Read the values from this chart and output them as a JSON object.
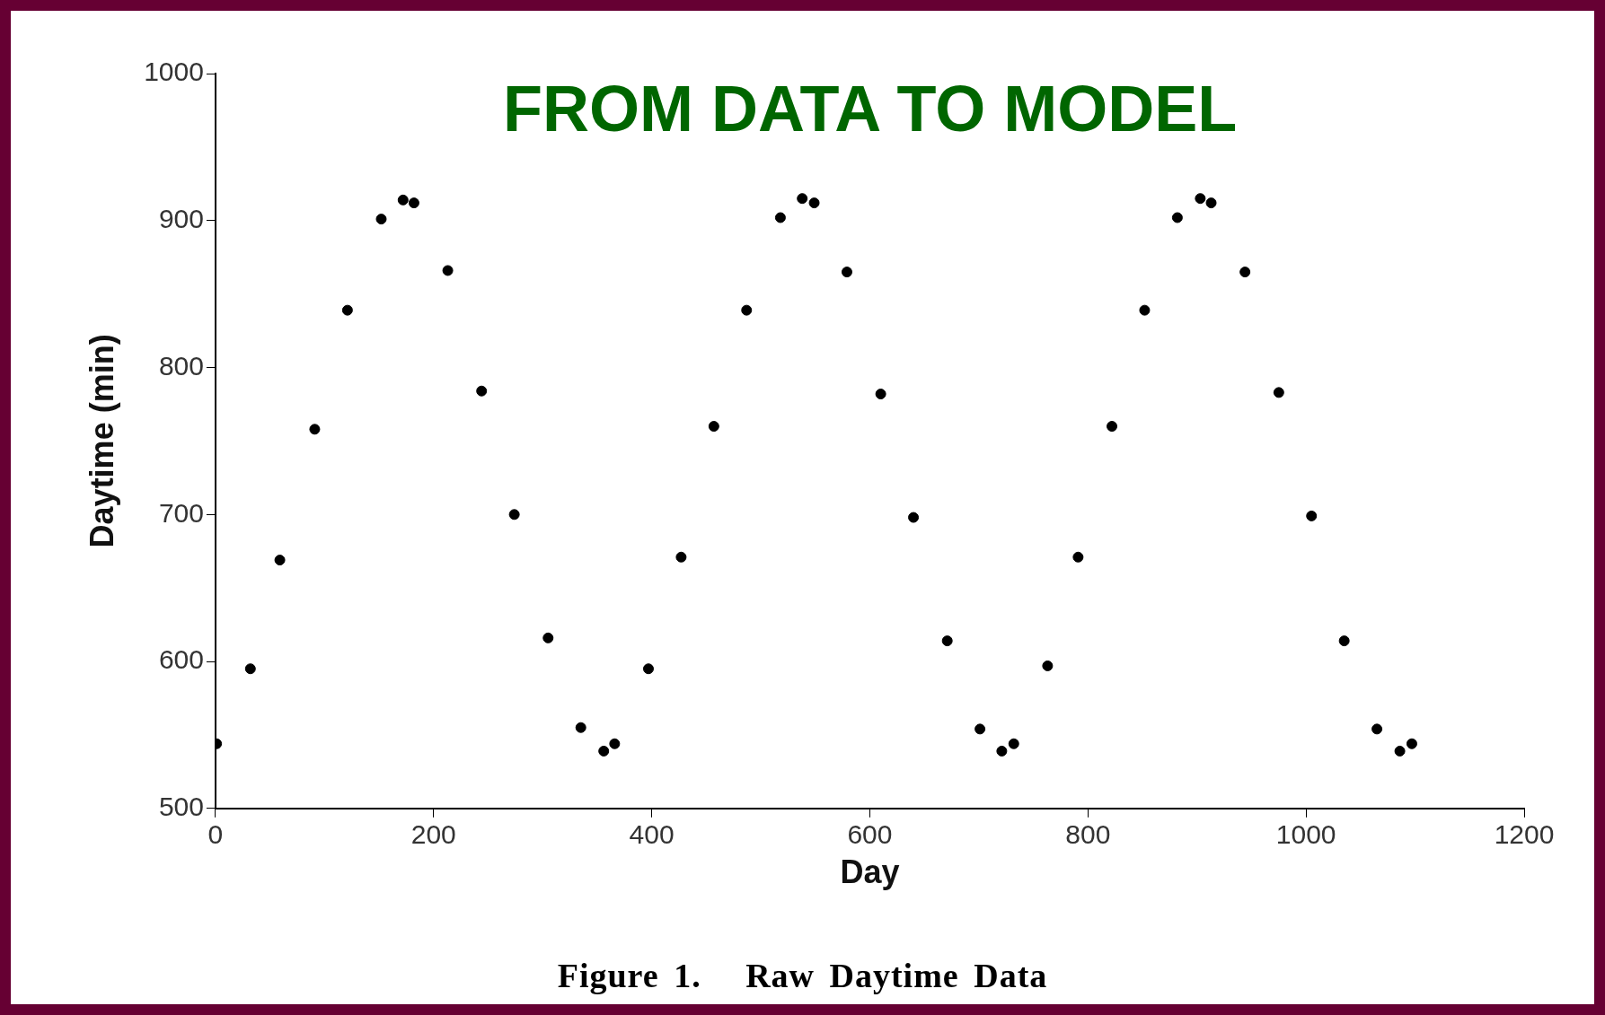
{
  "chart_data": {
    "type": "scatter",
    "title": "FROM DATA TO MODEL",
    "xlabel": "Day",
    "ylabel": "Daytime (min)",
    "annotations": [
      "Figure 1.   Raw Daytime Data"
    ],
    "x": [
      1,
      32,
      59,
      91,
      121,
      152,
      172,
      182,
      213,
      244,
      274,
      305,
      335,
      356,
      366,
      397,
      427,
      457,
      487,
      518,
      538,
      549,
      579,
      610,
      640,
      671,
      701,
      721,
      732,
      763,
      791,
      822,
      852,
      882,
      903,
      913,
      944,
      975,
      1005,
      1035,
      1065,
      1086,
      1097
    ],
    "series": [
      {
        "color": "#000000",
        "values": [
          544,
          595,
          669,
          758,
          839,
          901,
          914,
          912,
          866,
          784,
          700,
          616,
          555,
          539,
          544,
          595,
          671,
          760,
          839,
          902,
          915,
          912,
          865,
          782,
          698,
          614,
          554,
          539,
          544,
          597,
          671,
          760,
          839,
          902,
          915,
          912,
          865,
          783,
          699,
          614,
          554,
          539,
          544
        ]
      }
    ],
    "xlim": [
      0,
      1200
    ],
    "xticks": [
      0,
      200,
      400,
      600,
      800,
      1000,
      1200
    ],
    "ylim": [
      500,
      1000
    ],
    "yticks": [
      500,
      600,
      700,
      800,
      900,
      1000
    ],
    "grid": false,
    "legend": false,
    "marker": "circle"
  }
}
